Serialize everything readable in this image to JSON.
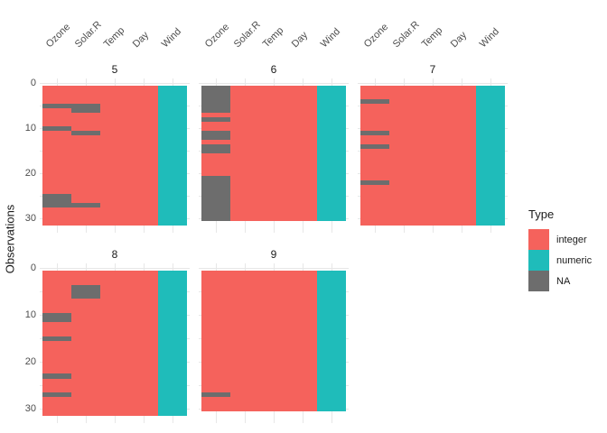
{
  "chart_data": {
    "type": "heatmap",
    "title": "",
    "ylabel": "Observations",
    "y_ticks": [
      0,
      10,
      20,
      30
    ],
    "y_axis_reversed": true,
    "grid": true,
    "legend_position": "right",
    "columns": [
      "Ozone",
      "Solar.R",
      "Temp",
      "Day",
      "Wind"
    ],
    "column_types": [
      "integer",
      "integer",
      "integer",
      "integer",
      "numeric"
    ],
    "facets": [
      {
        "label": "5",
        "grid_row": 0,
        "grid_col": 0,
        "n_obs": 31,
        "na_rows": {
          "Ozone": [
            5,
            10,
            25,
            26,
            27
          ],
          "Solar.R": [
            5,
            6,
            11,
            27
          ]
        }
      },
      {
        "label": "6",
        "grid_row": 0,
        "grid_col": 1,
        "n_obs": 30,
        "na_rows": {
          "Ozone": [
            1,
            2,
            3,
            4,
            5,
            6,
            8,
            11,
            12,
            14,
            15,
            21,
            22,
            23,
            24,
            25,
            26,
            27,
            28,
            29,
            30
          ]
        }
      },
      {
        "label": "7",
        "grid_row": 0,
        "grid_col": 2,
        "n_obs": 31,
        "na_rows": {
          "Ozone": [
            4,
            11,
            14,
            22
          ]
        }
      },
      {
        "label": "8",
        "grid_row": 1,
        "grid_col": 0,
        "n_obs": 31,
        "na_rows": {
          "Ozone": [
            10,
            11,
            15,
            23,
            27
          ],
          "Solar.R": [
            4,
            5,
            6
          ]
        }
      },
      {
        "label": "9",
        "grid_row": 1,
        "grid_col": 1,
        "n_obs": 30,
        "na_rows": {
          "Ozone": [
            27
          ]
        }
      }
    ],
    "legend": {
      "title": "Type",
      "entries": [
        {
          "label": "integer",
          "color": "#F5625C"
        },
        {
          "label": "numeric",
          "color": "#1FBCBA"
        },
        {
          "label": "NA",
          "color": "#6D6D6D"
        }
      ]
    },
    "colors": {
      "integer": "#F5625C",
      "numeric": "#1FBCBA",
      "NA": "#6D6D6D",
      "gridline": "#E7E7E7",
      "axis_text": "#4D4D4D",
      "strip_text": "#1A1A1A",
      "title_text": "#1A1A1A"
    }
  }
}
